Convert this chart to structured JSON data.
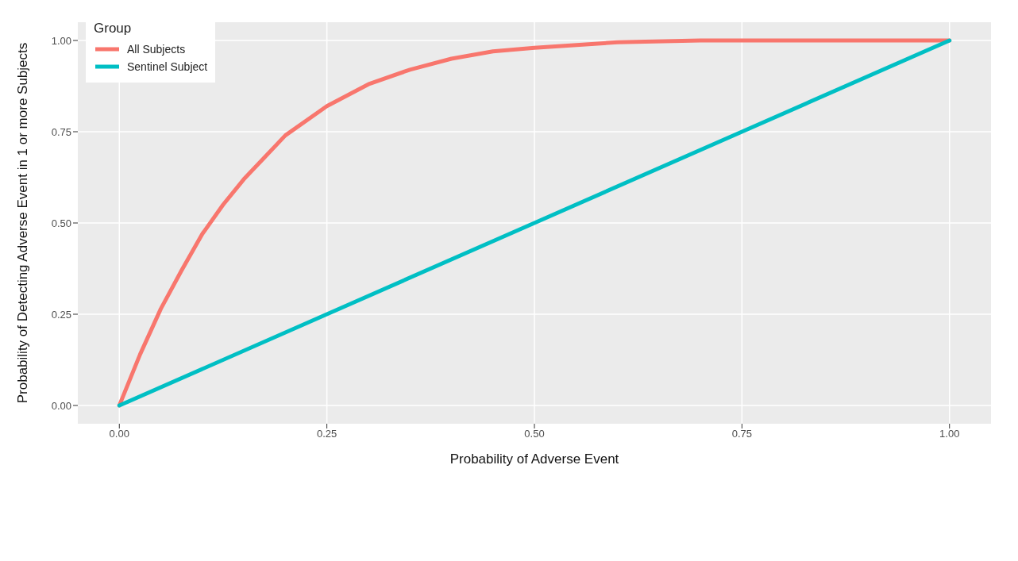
{
  "chart_data": {
    "type": "line",
    "xlabel": "Probability of Adverse Event",
    "ylabel": "Probability of Detecting Adverse Event in 1 or more Subjects",
    "legend_title": "Group",
    "legend": "top left",
    "grid": true,
    "marker": "none",
    "line_style": "solid",
    "xlim": [
      -0.05,
      1.05
    ],
    "ylim": [
      -0.05,
      1.05
    ],
    "xticks": [
      {
        "value": 0,
        "label": "0.00"
      },
      {
        "value": 0.25,
        "label": "0.25"
      },
      {
        "value": 0.5,
        "label": "0.50"
      },
      {
        "value": 0.75,
        "label": "0.75"
      },
      {
        "value": 1,
        "label": "1.00"
      }
    ],
    "yticks": [
      {
        "value": 0,
        "label": "0.00"
      },
      {
        "value": 0.25,
        "label": "0.25"
      },
      {
        "value": 0.5,
        "label": "0.50"
      },
      {
        "value": 0.75,
        "label": "0.75"
      },
      {
        "value": 1,
        "label": "1.00"
      }
    ],
    "series": [
      {
        "name": "All Subjects",
        "color": "#f8766d",
        "x": [
          0,
          0.025,
          0.05,
          0.075,
          0.1,
          0.125,
          0.15,
          0.175,
          0.2,
          0.25,
          0.3,
          0.35,
          0.4,
          0.45,
          0.5,
          0.6,
          0.7,
          0.8,
          0.9,
          1
        ],
        "values": [
          0,
          0.14,
          0.265,
          0.37,
          0.47,
          0.55,
          0.62,
          0.68,
          0.74,
          0.82,
          0.88,
          0.92,
          0.95,
          0.97,
          0.98,
          0.995,
          1,
          1,
          1,
          1
        ]
      },
      {
        "name": "Sentinel Subject",
        "color": "#00bfc4",
        "x": [
          0,
          0.25,
          0.5,
          0.75,
          1
        ],
        "values": [
          0,
          0.25,
          0.5,
          0.75,
          1
        ]
      }
    ]
  }
}
